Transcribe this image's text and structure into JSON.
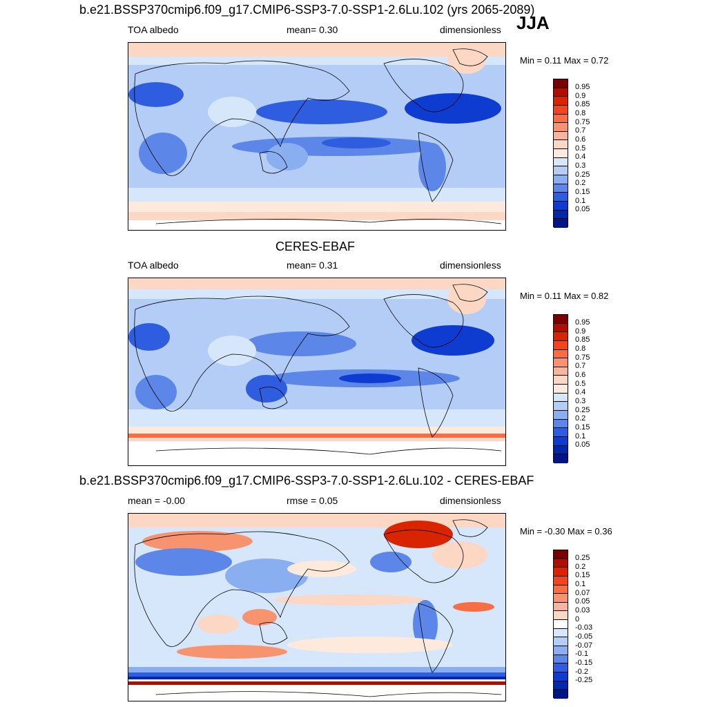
{
  "season": "JJA",
  "panels": [
    {
      "title": "b.e21.BSSP370cmip6.f09_g17.CMIP6-SSP3-7.0-SSP1-2.6Lu.102 (yrs 2065-2089)",
      "left": "TOA albedo",
      "mid": "mean=   0.30",
      "right": "dimensionless",
      "minmax": "Min =   0.11 Max =   0.72",
      "levels": [
        "0.95",
        "0.9",
        "0.85",
        "0.8",
        "0.75",
        "0.7",
        "0.6",
        "0.5",
        "0.4",
        "0.3",
        "0.25",
        "0.2",
        "0.15",
        "0.1",
        "0.05"
      ],
      "colors": [
        "#7a0000",
        "#b00f00",
        "#d92400",
        "#f0461d",
        "#f56e44",
        "#f7936f",
        "#f9b59b",
        "#fbd7c4",
        "#fdeadd",
        "#d7e7fb",
        "#b3cdf6",
        "#8aaff0",
        "#5c86e8",
        "#2f5ddf",
        "#0e3bd0",
        "#0028a8",
        "#001685"
      ]
    },
    {
      "title": "CERES-EBAF",
      "left": "TOA albedo",
      "mid": "mean=   0.31",
      "right": "dimensionless",
      "minmax": "Min =   0.11 Max =   0.82",
      "levels": [
        "0.95",
        "0.9",
        "0.85",
        "0.8",
        "0.75",
        "0.7",
        "0.6",
        "0.5",
        "0.4",
        "0.3",
        "0.25",
        "0.2",
        "0.15",
        "0.1",
        "0.05"
      ],
      "colors": [
        "#7a0000",
        "#b00f00",
        "#d92400",
        "#f0461d",
        "#f56e44",
        "#f7936f",
        "#f9b59b",
        "#fbd7c4",
        "#fdeadd",
        "#d7e7fb",
        "#b3cdf6",
        "#8aaff0",
        "#5c86e8",
        "#2f5ddf",
        "#0e3bd0",
        "#0028a8",
        "#001685"
      ]
    },
    {
      "title": "b.e21.BSSP370cmip6.f09_g17.CMIP6-SSP3-7.0-SSP1-2.6Lu.102 - CERES-EBAF",
      "left": "mean =  -0.00",
      "mid": "rmse =   0.05",
      "right": "dimensionless",
      "minmax": "Min =  -0.30 Max =   0.36",
      "levels": [
        "0.25",
        "0.2",
        "0.15",
        "0.1",
        "0.07",
        "0.05",
        "0.03",
        "0",
        "-0.03",
        "-0.05",
        "-0.07",
        "-0.1",
        "-0.15",
        "-0.2",
        "-0.25"
      ],
      "colors": [
        "#7a0000",
        "#b00f00",
        "#d92400",
        "#f0461d",
        "#f56e44",
        "#f7936f",
        "#f9b59b",
        "#fbd7c4",
        "#ffffff",
        "#d7e7fb",
        "#b3cdf6",
        "#8aaff0",
        "#5c86e8",
        "#2f5ddf",
        "#0e3bd0",
        "#0028a8",
        "#001685"
      ]
    }
  ]
}
